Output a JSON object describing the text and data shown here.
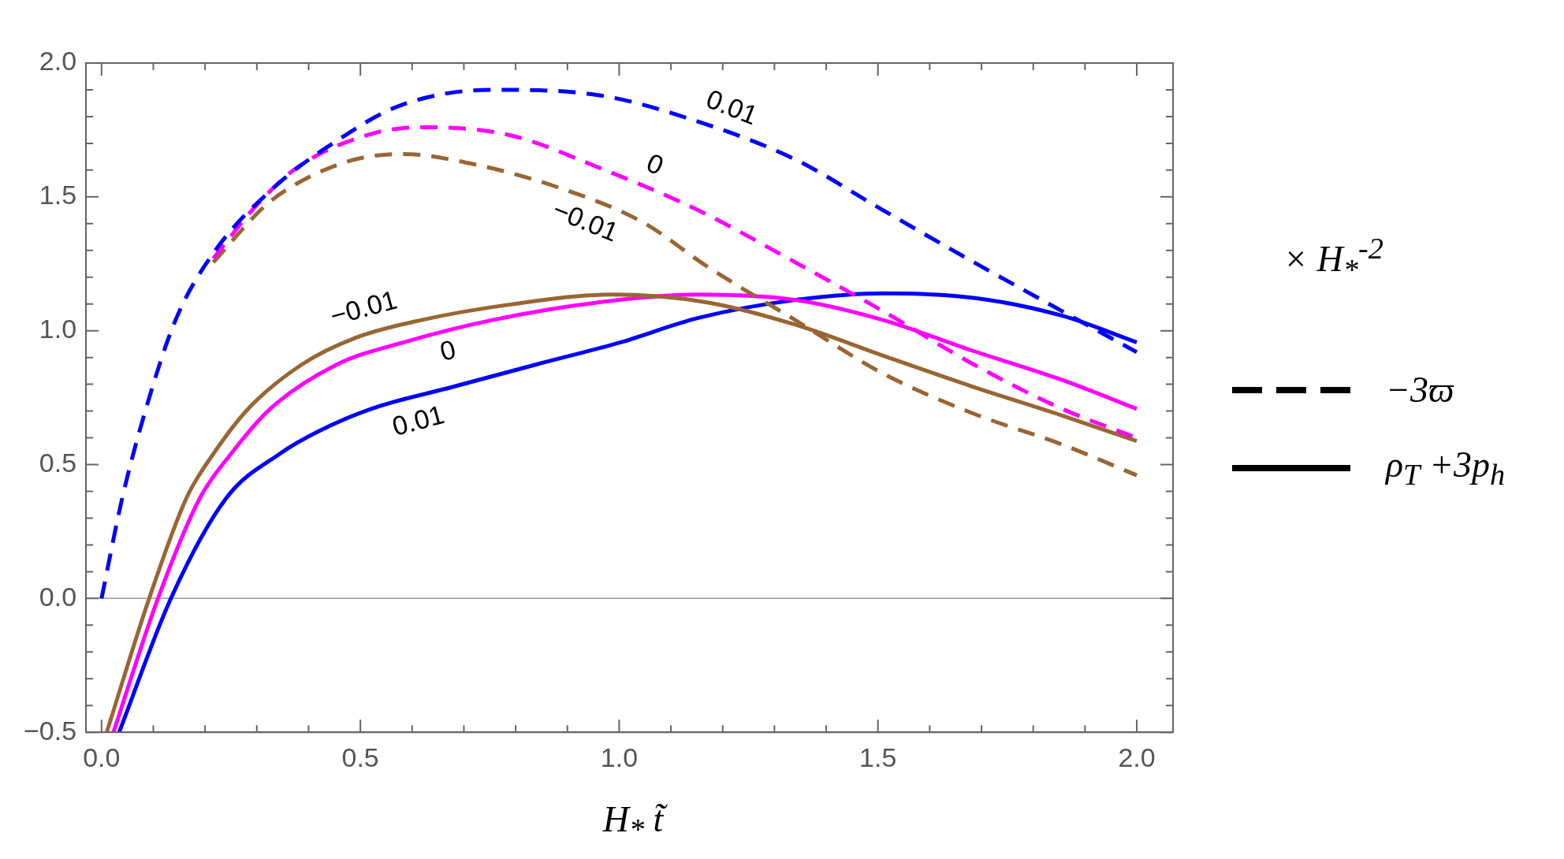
{
  "chart_data": {
    "type": "line",
    "xlabel": "H$_{*}$ t̃",
    "marker": "none",
    "xlim": [
      -0.03,
      2.07
    ],
    "ylim": [
      -0.5,
      2.0
    ],
    "xticks": [
      {
        "value": 0,
        "label": "0.0"
      },
      {
        "value": 0.1,
        "label": null
      },
      {
        "value": 0.2,
        "label": null
      },
      {
        "value": 0.3,
        "label": null
      },
      {
        "value": 0.4,
        "label": null
      },
      {
        "value": 0.5,
        "label": "0.5"
      },
      {
        "value": 0.6,
        "label": null
      },
      {
        "value": 0.7,
        "label": null
      },
      {
        "value": 0.8,
        "label": null
      },
      {
        "value": 0.9,
        "label": null
      },
      {
        "value": 1,
        "label": "1.0"
      },
      {
        "value": 1.1,
        "label": null
      },
      {
        "value": 1.2,
        "label": null
      },
      {
        "value": 1.3,
        "label": null
      },
      {
        "value": 1.4,
        "label": null
      },
      {
        "value": 1.5,
        "label": "1.5"
      },
      {
        "value": 1.6,
        "label": null
      },
      {
        "value": 1.7,
        "label": null
      },
      {
        "value": 1.8,
        "label": null
      },
      {
        "value": 1.9,
        "label": null
      },
      {
        "value": 2,
        "label": "2.0"
      }
    ],
    "yticks": [
      {
        "value": -0.5,
        "label": "−0.5"
      },
      {
        "value": -0.4,
        "label": null
      },
      {
        "value": -0.3,
        "label": null
      },
      {
        "value": -0.2,
        "label": null
      },
      {
        "value": -0.1,
        "label": null
      },
      {
        "value": 0,
        "label": "0.0"
      },
      {
        "value": 0.1,
        "label": null
      },
      {
        "value": 0.2,
        "label": null
      },
      {
        "value": 0.3,
        "label": null
      },
      {
        "value": 0.4,
        "label": null
      },
      {
        "value": 0.5,
        "label": "0.5"
      },
      {
        "value": 0.6,
        "label": null
      },
      {
        "value": 0.7,
        "label": null
      },
      {
        "value": 0.8,
        "label": null
      },
      {
        "value": 0.9,
        "label": null
      },
      {
        "value": 1,
        "label": "1.0"
      },
      {
        "value": 1.1,
        "label": null
      },
      {
        "value": 1.2,
        "label": null
      },
      {
        "value": 1.3,
        "label": null
      },
      {
        "value": 1.4,
        "label": null
      },
      {
        "value": 1.5,
        "label": "1.5"
      },
      {
        "value": 1.6,
        "label": null
      },
      {
        "value": 1.7,
        "label": null
      },
      {
        "value": 1.8,
        "label": null
      },
      {
        "value": 1.9,
        "label": null
      },
      {
        "value": 2,
        "label": "2.0"
      }
    ],
    "ref_lines": [
      {
        "axis": "y",
        "value": 0,
        "color": "#999999"
      }
    ],
    "annotations": [
      "× H$_{*}$$^{-2}$",
      "−3ϖ",
      "ρ$_{T}$ +3p$_{h}$"
    ],
    "series": [
      {
        "name": "0.01",
        "color": "#0000ff",
        "line_style": "dashed",
        "x": [
          0,
          0.04,
          0.086,
          0.143,
          0.216,
          0.336,
          0.447,
          0.575,
          0.755,
          0.96,
          1.17,
          1.34,
          1.51,
          1.685,
          1.856,
          2.0
        ],
        "values": [
          0,
          0.375,
          0.71,
          1.04,
          1.29,
          1.54,
          1.7,
          1.84,
          1.9,
          1.88,
          1.77,
          1.64,
          1.45,
          1.256,
          1.073,
          0.92
        ]
      },
      {
        "name": "0",
        "color": "#ff00ff",
        "line_style": "dashed",
        "x": [
          0.216,
          0.3,
          0.378,
          0.53,
          0.635,
          0.79,
          0.96,
          1.153,
          1.34,
          1.51,
          1.685,
          1.856,
          2.0
        ],
        "values": [
          1.27,
          1.47,
          1.61,
          1.74,
          1.76,
          1.73,
          1.61,
          1.45,
          1.256,
          1.073,
          0.874,
          0.708,
          0.6
        ]
      },
      {
        "name": "−0.01",
        "color": "#996633",
        "line_style": "dashed",
        "x": [
          0.216,
          0.318,
          0.387,
          0.49,
          0.584,
          0.7,
          0.875,
          1.046,
          1.17,
          1.34,
          1.51,
          1.685,
          1.856,
          2.0
        ],
        "values": [
          1.256,
          1.47,
          1.56,
          1.64,
          1.66,
          1.63,
          1.54,
          1.405,
          1.24,
          1.04,
          0.84,
          0.69,
          0.575,
          0.46
        ]
      },
      {
        "name": "−0.01",
        "color": "#996633",
        "line_style": "solid",
        "x": [
          0.01,
          0.092,
          0.164,
          0.216,
          0.284,
          0.387,
          0.49,
          0.618,
          0.79,
          0.986,
          1.17,
          1.34,
          1.51,
          1.685,
          1.856,
          2.0
        ],
        "values": [
          -0.5,
          0,
          0.375,
          0.54,
          0.71,
          0.874,
          0.973,
          1.04,
          1.098,
          1.135,
          1.106,
          1.023,
          0.907,
          0.79,
          0.683,
          0.588
        ]
      },
      {
        "name": "0",
        "color": "#ff00ff",
        "line_style": "solid",
        "x": [
          0.023,
          0.109,
          0.19,
          0.25,
          0.327,
          0.455,
          0.584,
          0.755,
          0.96,
          1.153,
          1.34,
          1.51,
          1.685,
          1.856,
          2.0
        ],
        "values": [
          -0.5,
          0,
          0.375,
          0.54,
          0.71,
          0.874,
          0.957,
          1.04,
          1.106,
          1.135,
          1.115,
          1.04,
          0.924,
          0.816,
          0.708
        ]
      },
      {
        "name": "0.01",
        "color": "#0000ff",
        "line_style": "solid",
        "x": [
          0.034,
          0.134,
          0.241,
          0.344,
          0.42,
          0.524,
          0.678,
          0.84,
          1.003,
          1.153,
          1.34,
          1.51,
          1.685,
          1.856,
          2.0
        ],
        "values": [
          -0.5,
          0,
          0.375,
          0.54,
          0.625,
          0.71,
          0.79,
          0.874,
          0.957,
          1.048,
          1.115,
          1.14,
          1.123,
          1.056,
          0.957
        ]
      }
    ]
  }
}
